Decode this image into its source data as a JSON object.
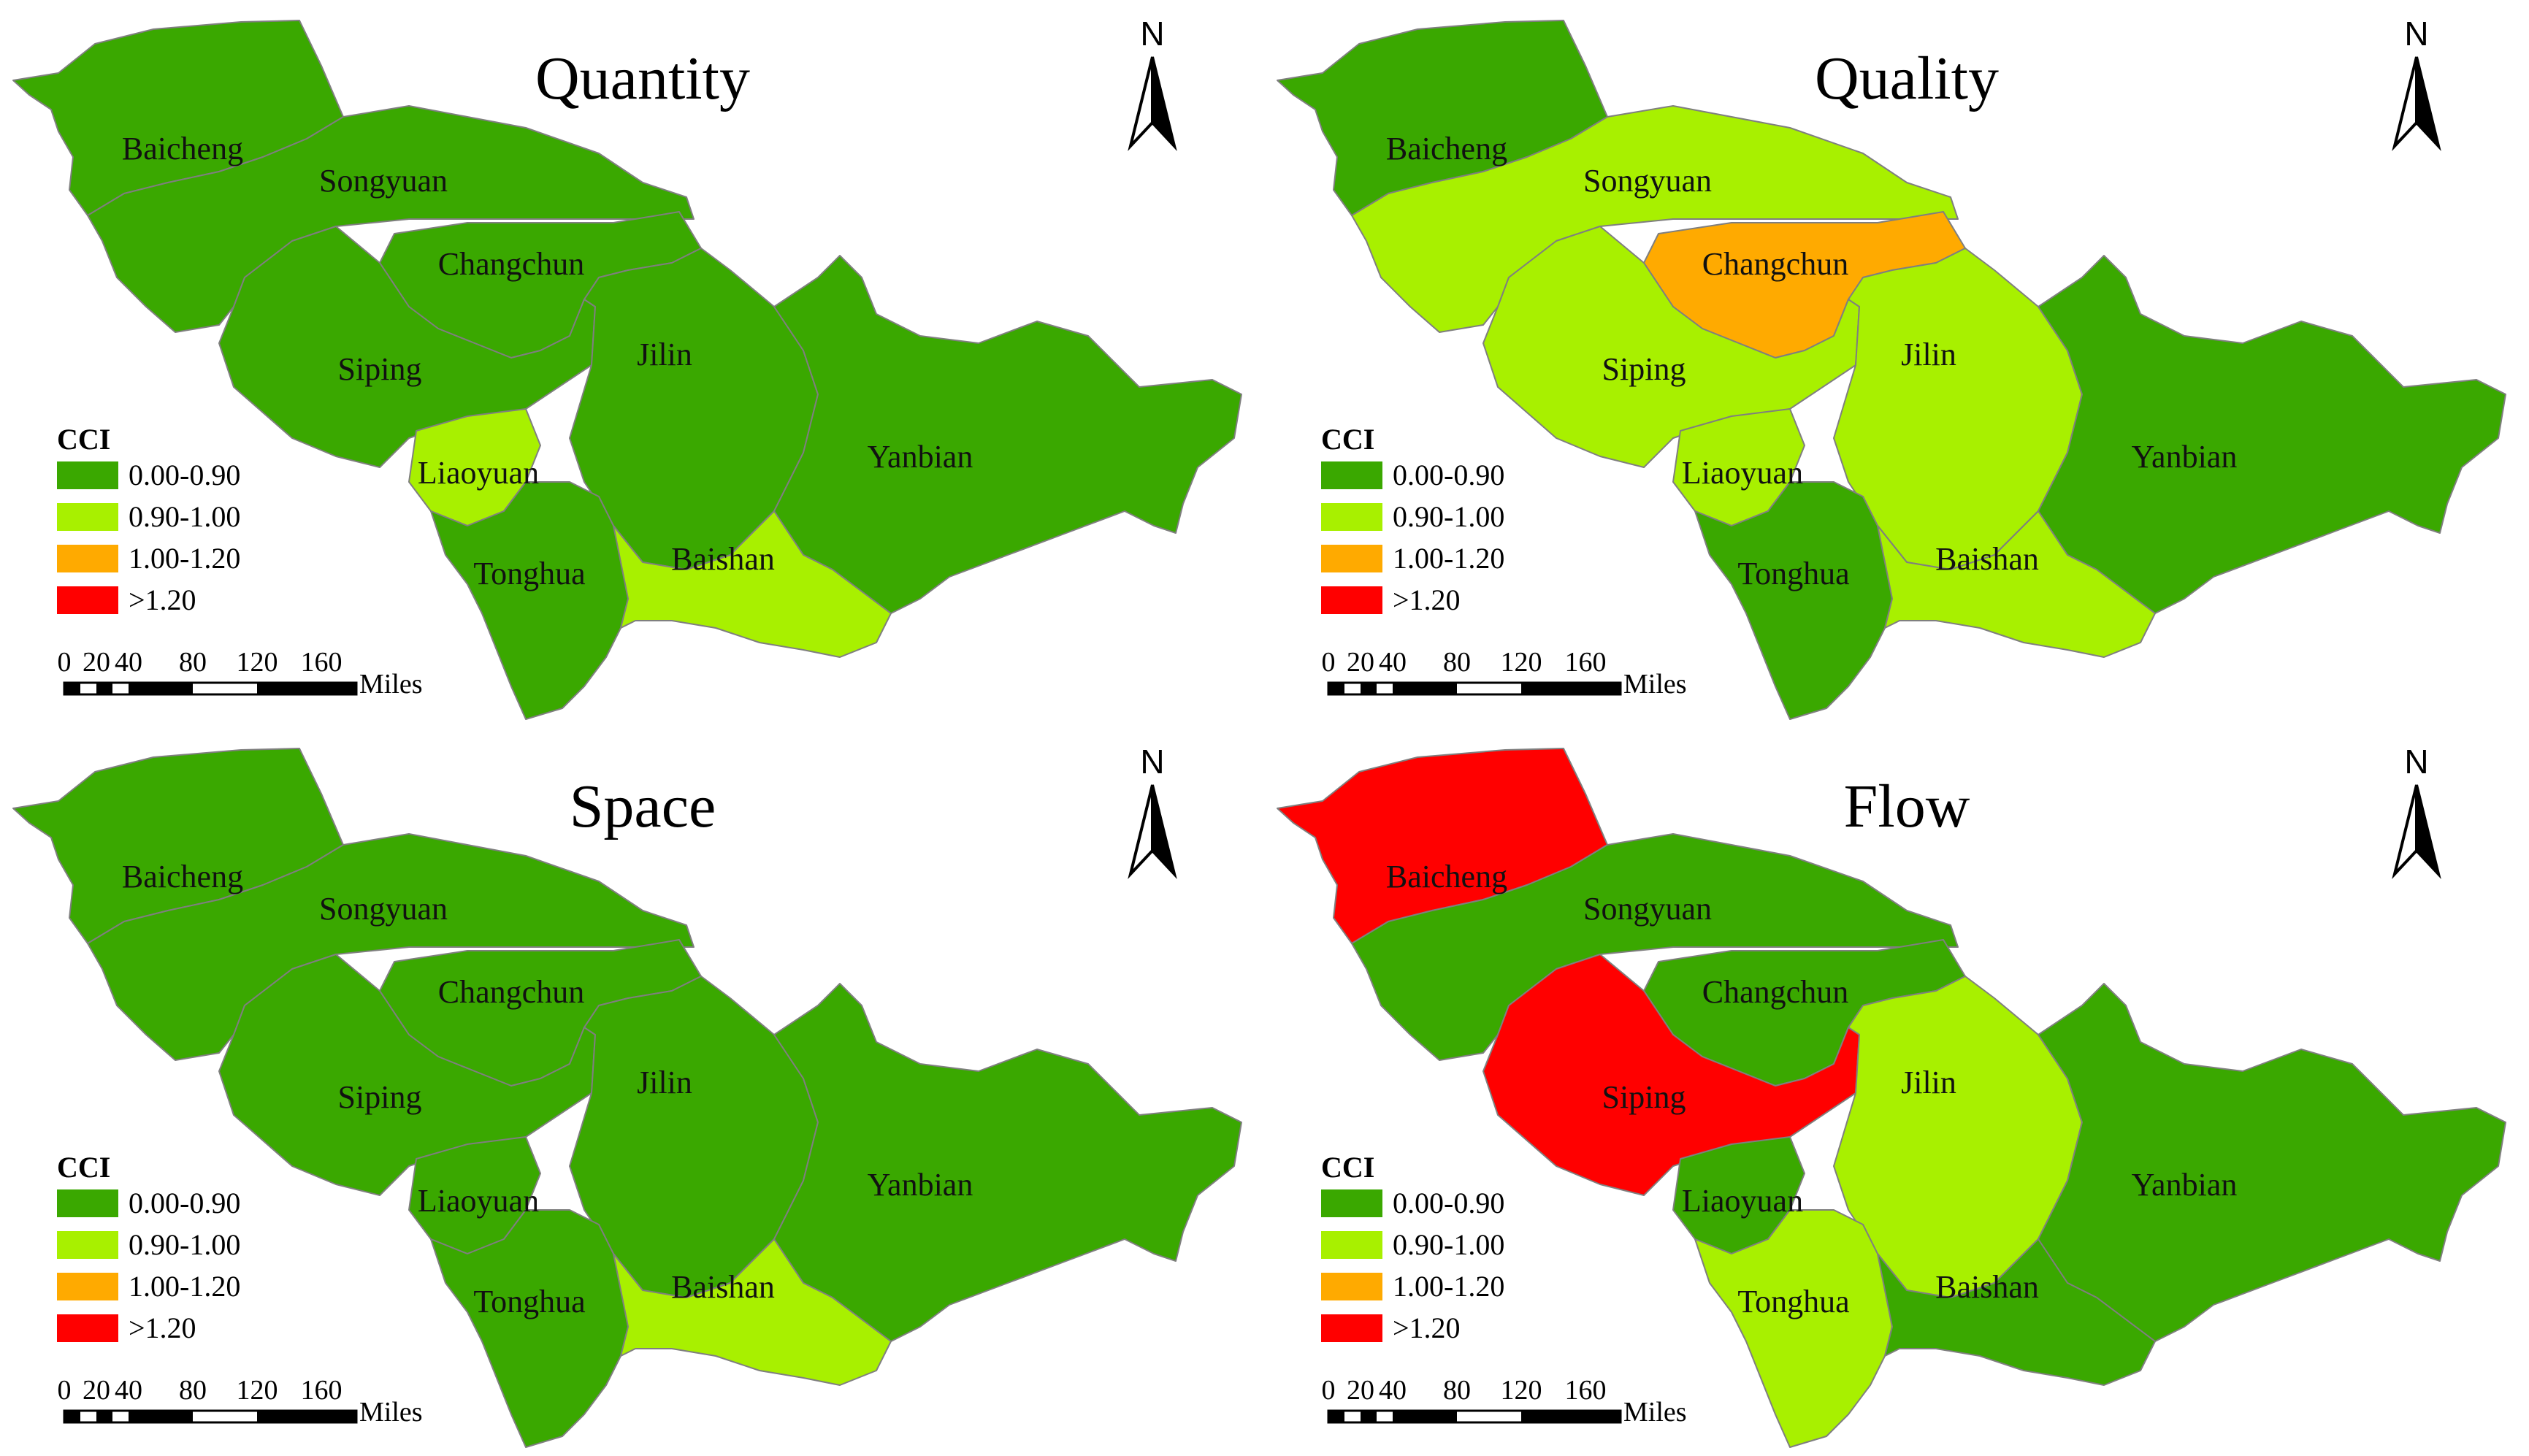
{
  "legend": {
    "title": "CCI",
    "classes": [
      {
        "label": "0.00-0.90",
        "color": "#3aa800"
      },
      {
        "label": "0.90-1.00",
        "color": "#a8f000"
      },
      {
        "label": "1.00-1.20",
        "color": "#ffaa00"
      },
      {
        "label": ">1.20",
        "color": "#ff0000"
      }
    ]
  },
  "scale_bar": {
    "ticks": [
      "0",
      "20",
      "40",
      "80",
      "120",
      "160"
    ],
    "unit": "Miles"
  },
  "north_label": "N",
  "region_names": [
    "Baicheng",
    "Songyuan",
    "Changchun",
    "Siping",
    "Jilin",
    "Liaoyuan",
    "Yanbian",
    "Tonghua",
    "Baishan"
  ],
  "maps": [
    {
      "title": "Quantity",
      "classes": {
        "Baicheng": 0,
        "Songyuan": 0,
        "Changchun": 0,
        "Siping": 0,
        "Jilin": 0,
        "Liaoyuan": 1,
        "Yanbian": 0,
        "Tonghua": 0,
        "Baishan": 1
      }
    },
    {
      "title": "Quality",
      "classes": {
        "Baicheng": 0,
        "Songyuan": 1,
        "Changchun": 2,
        "Siping": 1,
        "Jilin": 1,
        "Liaoyuan": 1,
        "Yanbian": 0,
        "Tonghua": 0,
        "Baishan": 1
      }
    },
    {
      "title": "Space",
      "classes": {
        "Baicheng": 0,
        "Songyuan": 0,
        "Changchun": 0,
        "Siping": 0,
        "Jilin": 0,
        "Liaoyuan": 0,
        "Yanbian": 0,
        "Tonghua": 0,
        "Baishan": 1
      }
    },
    {
      "title": "Flow",
      "classes": {
        "Baicheng": 3,
        "Songyuan": 0,
        "Changchun": 0,
        "Siping": 3,
        "Jilin": 1,
        "Liaoyuan": 0,
        "Yanbian": 0,
        "Tonghua": 1,
        "Baishan": 0
      }
    }
  ]
}
